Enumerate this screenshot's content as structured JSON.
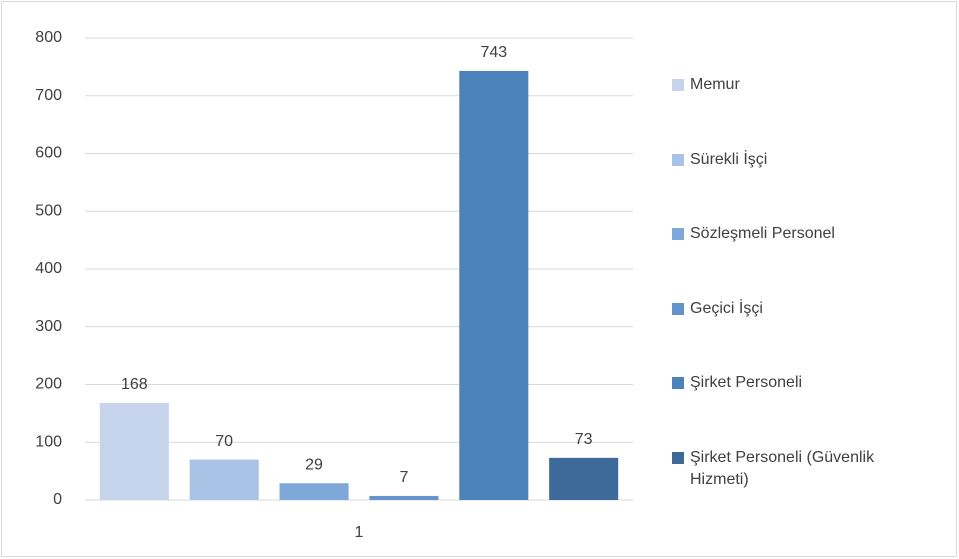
{
  "chart_data": {
    "type": "bar",
    "categories": [
      "1"
    ],
    "series": [
      {
        "name": "Memur",
        "color": "#c5d4eb",
        "values": [
          168
        ]
      },
      {
        "name": "Sürekli İşçi",
        "color": "#a8c3e5",
        "values": [
          70
        ]
      },
      {
        "name": "Sözleşmeli Personel",
        "color": "#7ea8da",
        "values": [
          29
        ]
      },
      {
        "name": "Geçici İşçi",
        "color": "#6594cc",
        "values": [
          7
        ]
      },
      {
        "name": "Şirket Personeli",
        "color": "#4b82b9",
        "values": [
          743
        ]
      },
      {
        "name": "Şirket Personeli (Güvenlik Hizmeti)",
        "color": "#3e6a99",
        "values": [
          73
        ]
      }
    ],
    "ylim": [
      0,
      800
    ],
    "yticks": [
      0,
      100,
      200,
      300,
      400,
      500,
      600,
      700,
      800
    ],
    "grid": true,
    "legend": "right"
  }
}
